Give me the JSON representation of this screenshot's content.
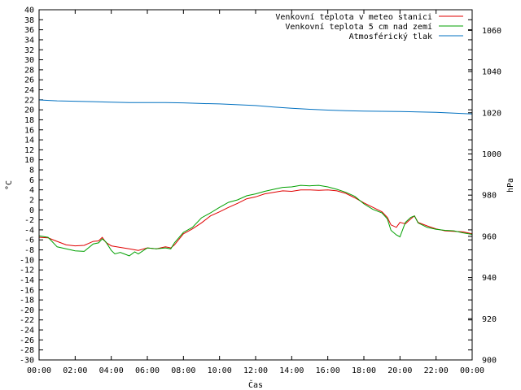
{
  "chart_data": {
    "type": "line",
    "xlabel": "Čas",
    "ylabel": "°C",
    "y2label": "hPa",
    "x_ticks": [
      "00:00",
      "02:00",
      "04:00",
      "06:00",
      "08:00",
      "10:00",
      "12:00",
      "14:00",
      "16:00",
      "18:00",
      "20:00",
      "22:00",
      "00:00"
    ],
    "ylim": [
      -30,
      40
    ],
    "y_step": 2,
    "y2lim": [
      900,
      1070
    ],
    "y2_ticks": [
      900,
      920,
      940,
      960,
      980,
      1000,
      1020,
      1040,
      1060
    ],
    "x_hours": [
      0,
      24
    ],
    "grid": false,
    "legend_position": "top-right",
    "series": [
      {
        "name": "Venkovní teplota v meteo stanici",
        "color": "#e00000",
        "axis": "left",
        "x": [
          0,
          0.5,
          1,
          1.5,
          2,
          2.5,
          3,
          3.3,
          3.5,
          3.7,
          4,
          4.5,
          5,
          5.5,
          6,
          6.5,
          7,
          7.3,
          7.5,
          8,
          8.5,
          9,
          9.5,
          10,
          10.5,
          11,
          11.5,
          12,
          12.5,
          13,
          13.5,
          14,
          14.5,
          15,
          15.5,
          16,
          16.5,
          17,
          17.5,
          18,
          18.5,
          19,
          19.3,
          19.5,
          19.8,
          20,
          20.3,
          20.6,
          20.8,
          21,
          21.5,
          22,
          22.5,
          23,
          23.5,
          24
        ],
        "y": [
          -5.5,
          -5.6,
          -6.3,
          -7,
          -7.2,
          -7.1,
          -6.3,
          -6.2,
          -5.5,
          -6.5,
          -7.2,
          -7.5,
          -7.8,
          -8.1,
          -7.6,
          -7.8,
          -7.4,
          -7.6,
          -7,
          -4.8,
          -3.8,
          -2.6,
          -1.2,
          -0.4,
          0.5,
          1.3,
          2.2,
          2.6,
          3.2,
          3.5,
          3.8,
          3.7,
          4,
          4,
          3.9,
          4,
          3.8,
          3.3,
          2.4,
          1.4,
          0.5,
          -0.4,
          -1.5,
          -3,
          -3.5,
          -2.5,
          -2.8,
          -1.8,
          -1.2,
          -2.5,
          -3.2,
          -3.8,
          -4.2,
          -4.3,
          -4.4,
          -4.8
        ]
      },
      {
        "name": "Venkovní teplota 5 cm nad zemí",
        "color": "#00a000",
        "axis": "left",
        "x": [
          0,
          0.5,
          1,
          1.5,
          2,
          2.5,
          3,
          3.3,
          3.5,
          3.7,
          4,
          4.2,
          4.5,
          5,
          5.3,
          5.5,
          6,
          6.5,
          7,
          7.3,
          7.5,
          8,
          8.5,
          9,
          9.5,
          10,
          10.5,
          11,
          11.5,
          12,
          12.5,
          13,
          13.5,
          14,
          14.5,
          15,
          15.5,
          16,
          16.5,
          17,
          17.5,
          18,
          18.5,
          19,
          19.3,
          19.5,
          19.8,
          20,
          20.3,
          20.6,
          20.8,
          21,
          21.5,
          22,
          22.5,
          23,
          23.5,
          24
        ],
        "y": [
          -5.2,
          -5.5,
          -7.4,
          -7.8,
          -8.2,
          -8.3,
          -6.8,
          -6.6,
          -5.8,
          -6.4,
          -8.1,
          -8.8,
          -8.5,
          -9.2,
          -8.4,
          -8.8,
          -7.6,
          -7.8,
          -7.6,
          -7.8,
          -6.6,
          -4.5,
          -3.5,
          -1.6,
          -0.6,
          0.5,
          1.5,
          2,
          2.8,
          3.2,
          3.7,
          4.1,
          4.5,
          4.6,
          4.9,
          4.8,
          4.9,
          4.6,
          4.1,
          3.5,
          2.7,
          1.2,
          0.1,
          -0.6,
          -1.8,
          -4.1,
          -5,
          -5.4,
          -2.5,
          -1.5,
          -1.2,
          -2.6,
          -3.5,
          -3.9,
          -4.1,
          -4.2,
          -4.6,
          -4.9
        ]
      },
      {
        "name": "Atmosférický tlak",
        "color": "#0070c0",
        "axis": "right",
        "x": [
          0,
          1,
          2,
          3,
          4,
          5,
          6,
          7,
          8,
          9,
          10,
          11,
          12,
          13,
          14,
          15,
          16,
          17,
          18,
          19,
          20,
          21,
          22,
          23,
          24
        ],
        "y": [
          1026.2,
          1025.8,
          1025.6,
          1025.4,
          1025.1,
          1024.9,
          1024.9,
          1024.9,
          1024.8,
          1024.5,
          1024.3,
          1023.9,
          1023.5,
          1022.8,
          1022.2,
          1021.7,
          1021.3,
          1021.0,
          1020.8,
          1020.7,
          1020.6,
          1020.4,
          1020.2,
          1019.8,
          1019.4
        ]
      }
    ]
  }
}
